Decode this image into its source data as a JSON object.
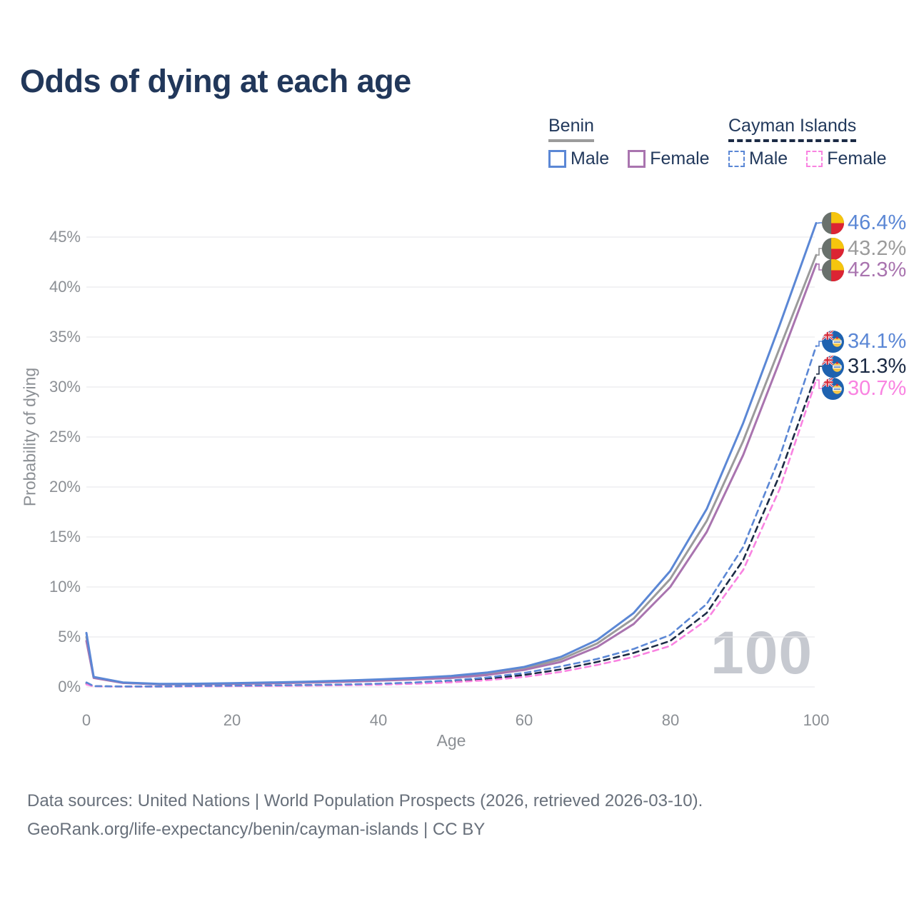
{
  "title": "Odds of dying at each age",
  "legend": {
    "groups": [
      {
        "country": "Benin",
        "line_style": "solid",
        "line_color": "#9b9b9b",
        "items": [
          {
            "label": "Male",
            "color": "#5b87d5",
            "style": "solid"
          },
          {
            "label": "Female",
            "color": "#a974af",
            "style": "solid"
          }
        ]
      },
      {
        "country": "Cayman Islands",
        "line_style": "dashed",
        "line_color": "#1c2b45",
        "items": [
          {
            "label": "Male",
            "color": "#5b87d5",
            "style": "dashed"
          },
          {
            "label": "Female",
            "color": "#f983e1",
            "style": "dashed"
          }
        ]
      }
    ]
  },
  "axes": {
    "x": {
      "label": "Age",
      "min": 0,
      "max": 100,
      "ticks": [
        "0",
        "20",
        "40",
        "60",
        "80",
        "100"
      ]
    },
    "y": {
      "label": "Probability of dying",
      "min": 0,
      "max": 45,
      "unit": "%",
      "ticks": [
        "45%",
        "40%",
        "35%",
        "30%",
        "25%",
        "20%",
        "15%",
        "10%",
        "5%",
        "0%"
      ]
    }
  },
  "watermark": "100",
  "footer": {
    "line1": "Data sources: United Nations | World Population Prospects (2026, retrieved 2026-03-10).",
    "line2": "GeoRank.org/life-expectancy/benin/cayman-islands | CC BY"
  },
  "chart_data": {
    "type": "line",
    "title": "Odds of dying at each age",
    "xlabel": "Age",
    "ylabel": "Probability of dying",
    "xlim": [
      0,
      100
    ],
    "ylim": [
      0,
      46.5
    ],
    "grid": "horizontal",
    "legend_position": "top-right",
    "x_ages": [
      0,
      1,
      5,
      10,
      15,
      20,
      25,
      30,
      35,
      40,
      45,
      50,
      55,
      60,
      65,
      70,
      75,
      80,
      85,
      90,
      95,
      100
    ],
    "series": [
      {
        "name": "Benin — Male",
        "country": "Benin",
        "sex": "Male",
        "style": "solid",
        "color": "#5b87d5",
        "end_label": "46.4%",
        "end_value": 46.4,
        "values": [
          5.4,
          1.0,
          0.45,
          0.3,
          0.32,
          0.38,
          0.44,
          0.52,
          0.62,
          0.75,
          0.9,
          1.1,
          1.45,
          2.0,
          3.0,
          4.7,
          7.4,
          11.6,
          17.8,
          26.4,
          36.2,
          46.4
        ]
      },
      {
        "name": "Benin — Both sexes",
        "country": "Benin",
        "sex": "Both",
        "style": "solid",
        "color": "#9b9b9b",
        "end_label": "43.2%",
        "end_value": 43.2,
        "values": [
          5.0,
          0.95,
          0.42,
          0.28,
          0.29,
          0.34,
          0.4,
          0.47,
          0.56,
          0.68,
          0.82,
          1.0,
          1.3,
          1.85,
          2.75,
          4.35,
          6.85,
          10.8,
          16.6,
          24.6,
          33.9,
          43.2
        ]
      },
      {
        "name": "Benin — Female",
        "country": "Benin",
        "sex": "Female",
        "style": "solid",
        "color": "#a974af",
        "end_label": "42.3%",
        "end_value": 42.3,
        "values": [
          4.6,
          0.9,
          0.4,
          0.26,
          0.27,
          0.31,
          0.36,
          0.43,
          0.51,
          0.62,
          0.75,
          0.9,
          1.2,
          1.7,
          2.5,
          4.0,
          6.3,
          10.0,
          15.5,
          23.2,
          32.6,
          42.3
        ]
      },
      {
        "name": "Cayman Islands — Male",
        "country": "Cayman Islands",
        "sex": "Male",
        "style": "dashed",
        "color": "#5b87d5",
        "end_label": "34.1%",
        "end_value": 34.1,
        "values": [
          0.45,
          0.08,
          0.05,
          0.05,
          0.09,
          0.13,
          0.16,
          0.19,
          0.24,
          0.32,
          0.45,
          0.65,
          0.95,
          1.4,
          2.05,
          2.8,
          3.8,
          5.2,
          8.3,
          14.0,
          23.0,
          34.1
        ]
      },
      {
        "name": "Cayman Islands — Both sexes",
        "country": "Cayman Islands",
        "sex": "Both",
        "style": "dashed",
        "color": "#1c2b45",
        "end_label": "31.3%",
        "end_value": 31.3,
        "values": [
          0.35,
          0.07,
          0.04,
          0.04,
          0.07,
          0.1,
          0.13,
          0.16,
          0.2,
          0.27,
          0.38,
          0.55,
          0.8,
          1.2,
          1.75,
          2.5,
          3.4,
          4.6,
          7.4,
          12.7,
          21.2,
          31.3
        ]
      },
      {
        "name": "Cayman Islands — Female",
        "country": "Cayman Islands",
        "sex": "Female",
        "style": "dashed",
        "color": "#f983e1",
        "end_label": "30.7%",
        "end_value": 30.7,
        "values": [
          0.25,
          0.06,
          0.03,
          0.03,
          0.05,
          0.08,
          0.1,
          0.13,
          0.17,
          0.22,
          0.32,
          0.46,
          0.68,
          1.0,
          1.5,
          2.2,
          3.0,
          4.1,
          6.7,
          11.7,
          19.8,
          30.7
        ]
      }
    ]
  }
}
